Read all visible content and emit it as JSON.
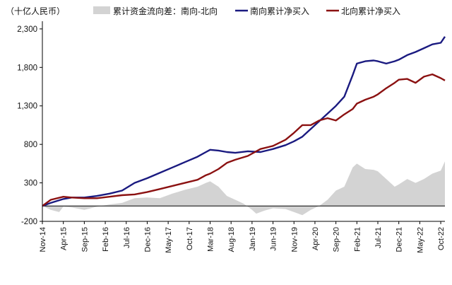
{
  "chart_data": {
    "type": "line",
    "unit_label": "（十亿人民币）",
    "legend_position": "top",
    "grid": false,
    "ylim": [
      -200,
      2400
    ],
    "yticks": [
      -200,
      300,
      800,
      1300,
      1800,
      2300
    ],
    "ytick_labels": [
      "-200",
      "300",
      "800",
      "1,300",
      "1,800",
      "2,300"
    ],
    "xlim": [
      "2014-11",
      "2022-11"
    ],
    "xticks": [
      "2014-11",
      "2015-04",
      "2015-09",
      "2016-02",
      "2016-07",
      "2016-12",
      "2017-05",
      "2017-10",
      "2018-03",
      "2018-08",
      "2019-01",
      "2019-06",
      "2019-11",
      "2020-04",
      "2020-09",
      "2021-02",
      "2021-07",
      "2021-12",
      "2022-05",
      "2022-10"
    ],
    "xtick_labels": [
      "Nov-14",
      "Apr-15",
      "Sep-15",
      "Feb-16",
      "Jul-16",
      "Dec-16",
      "May-17",
      "Oct-17",
      "Mar-18",
      "Aug-18",
      "Jan-19",
      "Jun-19",
      "Nov-19",
      "Apr-20",
      "Sep-20",
      "Feb-21",
      "Jul-21",
      "Dec-21",
      "May-22",
      "Oct-22"
    ],
    "series": [
      {
        "name": "累计资金流向差：南向-北向",
        "kind": "area",
        "color": "#d3d3d3",
        "points": [
          [
            "2014-11",
            0
          ],
          [
            "2015-01",
            -50
          ],
          [
            "2015-03",
            -80
          ],
          [
            "2015-04",
            -10
          ],
          [
            "2015-06",
            -20
          ],
          [
            "2015-09",
            -50
          ],
          [
            "2015-12",
            -10
          ],
          [
            "2016-03",
            20
          ],
          [
            "2016-06",
            40
          ],
          [
            "2016-09",
            100
          ],
          [
            "2016-12",
            110
          ],
          [
            "2017-03",
            100
          ],
          [
            "2017-06",
            160
          ],
          [
            "2017-09",
            210
          ],
          [
            "2017-12",
            250
          ],
          [
            "2018-02",
            300
          ],
          [
            "2018-03",
            320
          ],
          [
            "2018-05",
            250
          ],
          [
            "2018-07",
            130
          ],
          [
            "2018-09",
            80
          ],
          [
            "2018-11",
            30
          ],
          [
            "2019-01",
            -50
          ],
          [
            "2019-02",
            -100
          ],
          [
            "2019-04",
            -60
          ],
          [
            "2019-06",
            -30
          ],
          [
            "2019-09",
            -40
          ],
          [
            "2019-11",
            -80
          ],
          [
            "2020-01",
            -120
          ],
          [
            "2020-03",
            -50
          ],
          [
            "2020-05",
            0
          ],
          [
            "2020-07",
            80
          ],
          [
            "2020-09",
            200
          ],
          [
            "2020-11",
            250
          ],
          [
            "2021-01",
            500
          ],
          [
            "2021-02",
            550
          ],
          [
            "2021-04",
            480
          ],
          [
            "2021-06",
            470
          ],
          [
            "2021-07",
            450
          ],
          [
            "2021-09",
            350
          ],
          [
            "2021-11",
            250
          ],
          [
            "2021-12",
            280
          ],
          [
            "2022-02",
            350
          ],
          [
            "2022-04",
            300
          ],
          [
            "2022-06",
            350
          ],
          [
            "2022-08",
            420
          ],
          [
            "2022-10",
            460
          ],
          [
            "2022-11",
            580
          ]
        ]
      },
      {
        "name": "南向累计净买入",
        "kind": "line",
        "color": "#1a1a80",
        "points": [
          [
            "2014-11",
            0
          ],
          [
            "2015-01",
            40
          ],
          [
            "2015-04",
            90
          ],
          [
            "2015-06",
            110
          ],
          [
            "2015-09",
            110
          ],
          [
            "2015-12",
            130
          ],
          [
            "2016-03",
            160
          ],
          [
            "2016-06",
            200
          ],
          [
            "2016-09",
            300
          ],
          [
            "2016-12",
            360
          ],
          [
            "2017-03",
            430
          ],
          [
            "2017-06",
            500
          ],
          [
            "2017-09",
            570
          ],
          [
            "2017-12",
            640
          ],
          [
            "2018-02",
            700
          ],
          [
            "2018-03",
            730
          ],
          [
            "2018-05",
            720
          ],
          [
            "2018-07",
            700
          ],
          [
            "2018-09",
            690
          ],
          [
            "2018-12",
            710
          ],
          [
            "2019-03",
            700
          ],
          [
            "2019-06",
            740
          ],
          [
            "2019-09",
            790
          ],
          [
            "2019-11",
            840
          ],
          [
            "2020-01",
            900
          ],
          [
            "2020-03",
            1000
          ],
          [
            "2020-05",
            1100
          ],
          [
            "2020-07",
            1200
          ],
          [
            "2020-09",
            1300
          ],
          [
            "2020-11",
            1420
          ],
          [
            "2021-01",
            1700
          ],
          [
            "2021-02",
            1850
          ],
          [
            "2021-04",
            1880
          ],
          [
            "2021-06",
            1890
          ],
          [
            "2021-07",
            1880
          ],
          [
            "2021-09",
            1850
          ],
          [
            "2021-11",
            1880
          ],
          [
            "2021-12",
            1900
          ],
          [
            "2022-02",
            1960
          ],
          [
            "2022-04",
            2000
          ],
          [
            "2022-06",
            2050
          ],
          [
            "2022-08",
            2100
          ],
          [
            "2022-10",
            2120
          ],
          [
            "2022-11",
            2200
          ]
        ]
      },
      {
        "name": "北向累计净买入",
        "kind": "line",
        "color": "#8b1111",
        "points": [
          [
            "2014-11",
            0
          ],
          [
            "2015-01",
            80
          ],
          [
            "2015-04",
            120
          ],
          [
            "2015-06",
            110
          ],
          [
            "2015-09",
            100
          ],
          [
            "2015-12",
            100
          ],
          [
            "2016-03",
            120
          ],
          [
            "2016-06",
            140
          ],
          [
            "2016-09",
            150
          ],
          [
            "2016-12",
            180
          ],
          [
            "2017-03",
            220
          ],
          [
            "2017-06",
            260
          ],
          [
            "2017-09",
            300
          ],
          [
            "2017-12",
            340
          ],
          [
            "2018-02",
            400
          ],
          [
            "2018-03",
            420
          ],
          [
            "2018-05",
            480
          ],
          [
            "2018-07",
            560
          ],
          [
            "2018-09",
            600
          ],
          [
            "2018-12",
            650
          ],
          [
            "2019-03",
            740
          ],
          [
            "2019-06",
            780
          ],
          [
            "2019-09",
            860
          ],
          [
            "2019-11",
            950
          ],
          [
            "2020-01",
            1050
          ],
          [
            "2020-03",
            1050
          ],
          [
            "2020-05",
            1110
          ],
          [
            "2020-07",
            1140
          ],
          [
            "2020-09",
            1110
          ],
          [
            "2020-11",
            1190
          ],
          [
            "2021-01",
            1260
          ],
          [
            "2021-02",
            1330
          ],
          [
            "2021-04",
            1380
          ],
          [
            "2021-06",
            1420
          ],
          [
            "2021-07",
            1450
          ],
          [
            "2021-09",
            1530
          ],
          [
            "2021-11",
            1600
          ],
          [
            "2021-12",
            1640
          ],
          [
            "2022-02",
            1650
          ],
          [
            "2022-04",
            1600
          ],
          [
            "2022-06",
            1680
          ],
          [
            "2022-08",
            1710
          ],
          [
            "2022-10",
            1660
          ],
          [
            "2022-11",
            1630
          ]
        ]
      }
    ]
  }
}
